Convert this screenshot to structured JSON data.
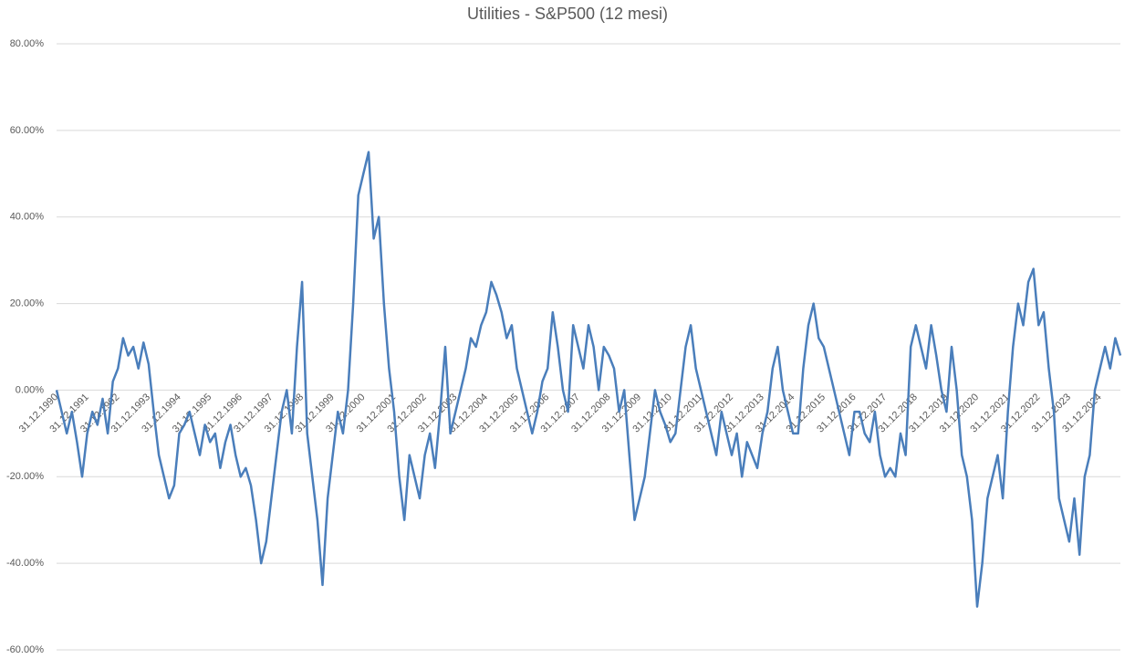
{
  "chart_data": {
    "type": "line",
    "title": "Utilities - S&P500 (12 mesi)",
    "categories": [
      "31.12.1990",
      null,
      null,
      null,
      null,
      null,
      "31.12.1991",
      null,
      null,
      null,
      null,
      null,
      "31.12.1992",
      null,
      null,
      null,
      null,
      null,
      "31.12.1993",
      null,
      null,
      null,
      null,
      null,
      "31.12.1994",
      null,
      null,
      null,
      null,
      null,
      "31.12.1995",
      null,
      null,
      null,
      null,
      null,
      "31.12.1996",
      null,
      null,
      null,
      null,
      null,
      "31.12.1997",
      null,
      null,
      null,
      null,
      null,
      "31.12.1998",
      null,
      null,
      null,
      null,
      null,
      "31.12.1999",
      null,
      null,
      null,
      null,
      null,
      "31.12.2000",
      null,
      null,
      null,
      null,
      null,
      "31.12.2001",
      null,
      null,
      null,
      null,
      null,
      "31.12.2002",
      null,
      null,
      null,
      null,
      null,
      "31.12.2003",
      null,
      null,
      null,
      null,
      null,
      "31.12.2004",
      null,
      null,
      null,
      null,
      null,
      "31.12.2005",
      null,
      null,
      null,
      null,
      null,
      "31.12.2006",
      null,
      null,
      null,
      null,
      null,
      "31.12.2007",
      null,
      null,
      null,
      null,
      null,
      "31.12.2008",
      null,
      null,
      null,
      null,
      null,
      "31.12.2009",
      null,
      null,
      null,
      null,
      null,
      "31.12.2010",
      null,
      null,
      null,
      null,
      null,
      "31.12.2011",
      null,
      null,
      null,
      null,
      null,
      "31.12.2012",
      null,
      null,
      null,
      null,
      null,
      "31.12.2013",
      null,
      null,
      null,
      null,
      null,
      "31.12.2014",
      null,
      null,
      null,
      null,
      null,
      "31.12.2015",
      null,
      null,
      null,
      null,
      null,
      "31.12.2016",
      null,
      null,
      null,
      null,
      null,
      "31.12.2017",
      null,
      null,
      null,
      null,
      null,
      "31.12.2018",
      null,
      null,
      null,
      null,
      null,
      "31.12.2019",
      null,
      null,
      null,
      null,
      null,
      "31.12.2020",
      null,
      null,
      null,
      null,
      null,
      "31.12.2021",
      null,
      null,
      null,
      null,
      null,
      "31.12.2022",
      null,
      null,
      null,
      null,
      null,
      "31.12.2023",
      null,
      null,
      null,
      null,
      null,
      "31.12.2024",
      null,
      null,
      null,
      null
    ],
    "series": [
      {
        "name": "Utilities - S&P500",
        "color": "#4a7ebb",
        "values": [
          0,
          -5,
          -10,
          -5,
          -12,
          -20,
          -10,
          -5,
          -8,
          -2,
          -10,
          2,
          5,
          12,
          8,
          10,
          5,
          11,
          6,
          -5,
          -15,
          -20,
          -25,
          -22,
          -10,
          -8,
          -5,
          -10,
          -15,
          -8,
          -12,
          -10,
          -18,
          -12,
          -8,
          -15,
          -20,
          -18,
          -22,
          -30,
          -40,
          -35,
          -25,
          -15,
          -5,
          0,
          -10,
          10,
          25,
          -10,
          -20,
          -30,
          -45,
          -25,
          -15,
          -5,
          -10,
          0,
          20,
          45,
          50,
          55,
          35,
          40,
          20,
          5,
          -5,
          -20,
          -30,
          -15,
          -20,
          -25,
          -15,
          -10,
          -18,
          -5,
          10,
          -10,
          -5,
          0,
          5,
          12,
          10,
          15,
          18,
          25,
          22,
          18,
          12,
          15,
          5,
          0,
          -5,
          -10,
          -5,
          2,
          5,
          18,
          10,
          0,
          -5,
          15,
          10,
          5,
          15,
          10,
          0,
          10,
          8,
          5,
          -5,
          0,
          -15,
          -30,
          -25,
          -20,
          -10,
          0,
          -5,
          -8,
          -12,
          -10,
          0,
          10,
          15,
          5,
          0,
          -5,
          -10,
          -15,
          -5,
          -10,
          -15,
          -10,
          -20,
          -12,
          -15,
          -18,
          -10,
          -5,
          5,
          10,
          0,
          -5,
          -10,
          -10,
          5,
          15,
          20,
          12,
          10,
          5,
          0,
          -5,
          -10,
          -15,
          -5,
          -5,
          -10,
          -12,
          -5,
          -15,
          -20,
          -18,
          -20,
          -10,
          -15,
          10,
          15,
          10,
          5,
          15,
          8,
          0,
          -5,
          10,
          0,
          -15,
          -20,
          -30,
          -50,
          -40,
          -25,
          -20,
          -15,
          -25,
          -5,
          10,
          20,
          15,
          25,
          28,
          15,
          18,
          5,
          -5,
          -25,
          -30,
          -35,
          -25,
          -38,
          -20,
          -15,
          0,
          5,
          10,
          5,
          12,
          8
        ]
      }
    ],
    "ylim": [
      -60,
      80
    ],
    "yticks": [
      {
        "value": -60,
        "label": "-60.00%"
      },
      {
        "value": -40,
        "label": "-40.00%"
      },
      {
        "value": -20,
        "label": "-20.00%"
      },
      {
        "value": 0,
        "label": "0.00%"
      },
      {
        "value": 20,
        "label": "20.00%"
      },
      {
        "value": 40,
        "label": "40.00%"
      },
      {
        "value": 60,
        "label": "60.00%"
      },
      {
        "value": 80,
        "label": "80.00%"
      }
    ],
    "grid": true
  }
}
